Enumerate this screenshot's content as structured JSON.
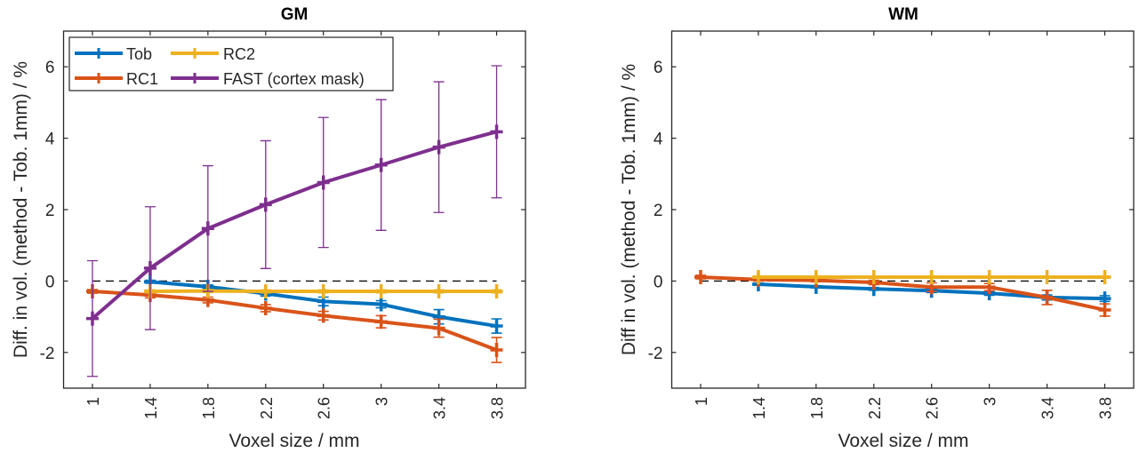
{
  "chart_data": [
    {
      "type": "line",
      "title": "GM",
      "xlabel": "Voxel size / mm",
      "ylabel": "Diff. in vol. (method - Tob. 1mm) / %",
      "x": [
        1,
        1.4,
        1.8,
        2.2,
        2.6,
        3,
        3.4,
        3.8
      ],
      "xticklabels": [
        "1",
        "1.4",
        "1.8",
        "2.2",
        "2.6",
        "3",
        "3.4",
        "3.8"
      ],
      "xlim": [
        0.8,
        4.0
      ],
      "ylim": [
        -3,
        7
      ],
      "yticks": [
        -2,
        0,
        2,
        4,
        6
      ],
      "yticklabels": [
        "-2",
        "0",
        "2",
        "4",
        "6"
      ],
      "reference_line": {
        "y": 0,
        "style": "dashed"
      },
      "grid": false,
      "legend": {
        "position": "top-left",
        "columns": 2
      },
      "series": [
        {
          "name": "Tob",
          "color": "#0072BD",
          "x": [
            1.4,
            1.8,
            2.2,
            2.6,
            3,
            3.4,
            3.8
          ],
          "values": [
            -0.02,
            -0.16,
            -0.35,
            -0.57,
            -0.65,
            -1.0,
            -1.26
          ],
          "errors": [
            0.04,
            0.05,
            0.07,
            0.12,
            0.1,
            0.2,
            0.2
          ]
        },
        {
          "name": "RC1",
          "color": "#D95319",
          "x": [
            1,
            1.4,
            1.8,
            2.2,
            2.6,
            3,
            3.4,
            3.8
          ],
          "values": [
            -0.29,
            -0.39,
            -0.53,
            -0.76,
            -0.97,
            -1.14,
            -1.32,
            -1.93
          ],
          "errors": [
            0.05,
            0.08,
            0.08,
            0.1,
            0.12,
            0.17,
            0.25,
            0.35
          ]
        },
        {
          "name": "RC2",
          "color": "#EDB120",
          "x": [
            1.4,
            1.8,
            2.2,
            2.6,
            3,
            3.4,
            3.8
          ],
          "values": [
            -0.29,
            -0.28,
            -0.29,
            -0.29,
            -0.29,
            -0.29,
            -0.29
          ],
          "errors": [
            0.04,
            0.04,
            0.04,
            0.04,
            0.04,
            0.04,
            0.04
          ]
        },
        {
          "name": "FAST (cortex mask)",
          "color": "#7E2F8E",
          "x": [
            1,
            1.4,
            1.8,
            2.2,
            2.6,
            3,
            3.4,
            3.8
          ],
          "values": [
            -1.05,
            0.36,
            1.47,
            2.14,
            2.76,
            3.25,
            3.75,
            4.18
          ],
          "errors": [
            1.62,
            1.72,
            1.76,
            1.79,
            1.82,
            1.83,
            1.83,
            1.85
          ]
        }
      ]
    },
    {
      "type": "line",
      "title": "WM",
      "xlabel": "Voxel size / mm",
      "ylabel": "Diff in vol. (method - Tob. 1mm) / %",
      "x": [
        1,
        1.4,
        1.8,
        2.2,
        2.6,
        3,
        3.4,
        3.8
      ],
      "xticklabels": [
        "1",
        "1.4",
        "1.8",
        "2.2",
        "2.6",
        "3",
        "3.4",
        "3.8"
      ],
      "xlim": [
        0.8,
        4.0
      ],
      "ylim": [
        -3,
        7
      ],
      "yticks": [
        -2,
        0,
        2,
        4,
        6
      ],
      "yticklabels": [
        "-2",
        "0",
        "2",
        "4",
        "6"
      ],
      "reference_line": {
        "y": 0,
        "style": "dashed"
      },
      "grid": false,
      "legend": null,
      "series": [
        {
          "name": "Tob",
          "color": "#0072BD",
          "x": [
            1.4,
            1.8,
            2.2,
            2.6,
            3,
            3.4,
            3.8
          ],
          "values": [
            -0.09,
            -0.16,
            -0.22,
            -0.27,
            -0.34,
            -0.46,
            -0.49
          ],
          "errors": [
            0.03,
            0.03,
            0.04,
            0.05,
            0.06,
            0.07,
            0.08
          ]
        },
        {
          "name": "RC1",
          "color": "#D95319",
          "x": [
            1,
            1.4,
            1.8,
            2.2,
            2.6,
            3,
            3.4,
            3.8
          ],
          "values": [
            0.11,
            0.04,
            0.02,
            -0.04,
            -0.17,
            -0.17,
            -0.46,
            -0.81
          ],
          "errors": [
            0.05,
            0.04,
            0.04,
            0.06,
            0.12,
            0.1,
            0.2,
            0.17
          ]
        },
        {
          "name": "RC2",
          "color": "#EDB120",
          "x": [
            1.4,
            1.8,
            2.2,
            2.6,
            3,
            3.4,
            3.8
          ],
          "values": [
            0.11,
            0.11,
            0.11,
            0.11,
            0.11,
            0.11,
            0.11
          ],
          "errors": [
            0.03,
            0.03,
            0.03,
            0.03,
            0.03,
            0.03,
            0.03
          ]
        }
      ]
    }
  ]
}
